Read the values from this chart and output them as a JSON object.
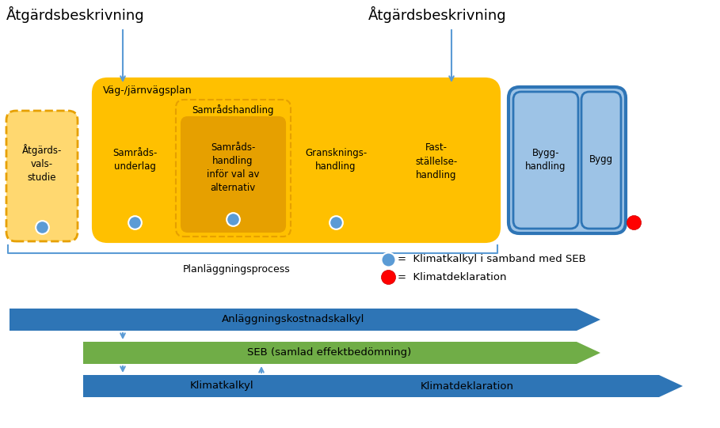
{
  "bg_color": "#ffffff",
  "title_left": "Åtgärdsbeskrivning",
  "title_right": "Åtgärdsbeskrivning",
  "yellow_outer": "#FFC000",
  "yellow_inner": "#FFD966",
  "light_yellow": "#FFE08A",
  "blue_dark": "#2E75B6",
  "blue_mid": "#5B9BD5",
  "blue_light": "#9DC3E6",
  "green": "#70AD47",
  "red": "#FF0000",
  "label_vag": "Väg-/järnvägsplan",
  "label_atgard": "Åtgärds-\nvals-\nstudie",
  "label_samrads_underlag": "Samråds-\nunderlag",
  "label_samrads_handling_title": "Samrådshandling",
  "label_samrads_handling": "Samråds-\nhandling\ninför val av\nalternativ",
  "label_granskning": "Gransknings-\nhandling",
  "label_fast": "Fast-\nställelse-\nhandling",
  "label_bygg_handling": "Bygg-\nhandling",
  "label_bygg": "Bygg",
  "label_planlaggning": "Planläggningsprocess",
  "label_klimatkalkyl_legend": "=  Klimatkalkyl i samband med SEB",
  "label_klimatdekl_legend": "=  Klimatdeklaration",
  "arrow1_label": "Anläggningskostnadskalkyl",
  "arrow2_label": "SEB (samlad effektbedömning)",
  "arrow3_label1": "Klimatkalkyl",
  "arrow3_label2": "Klimatdeklaration"
}
